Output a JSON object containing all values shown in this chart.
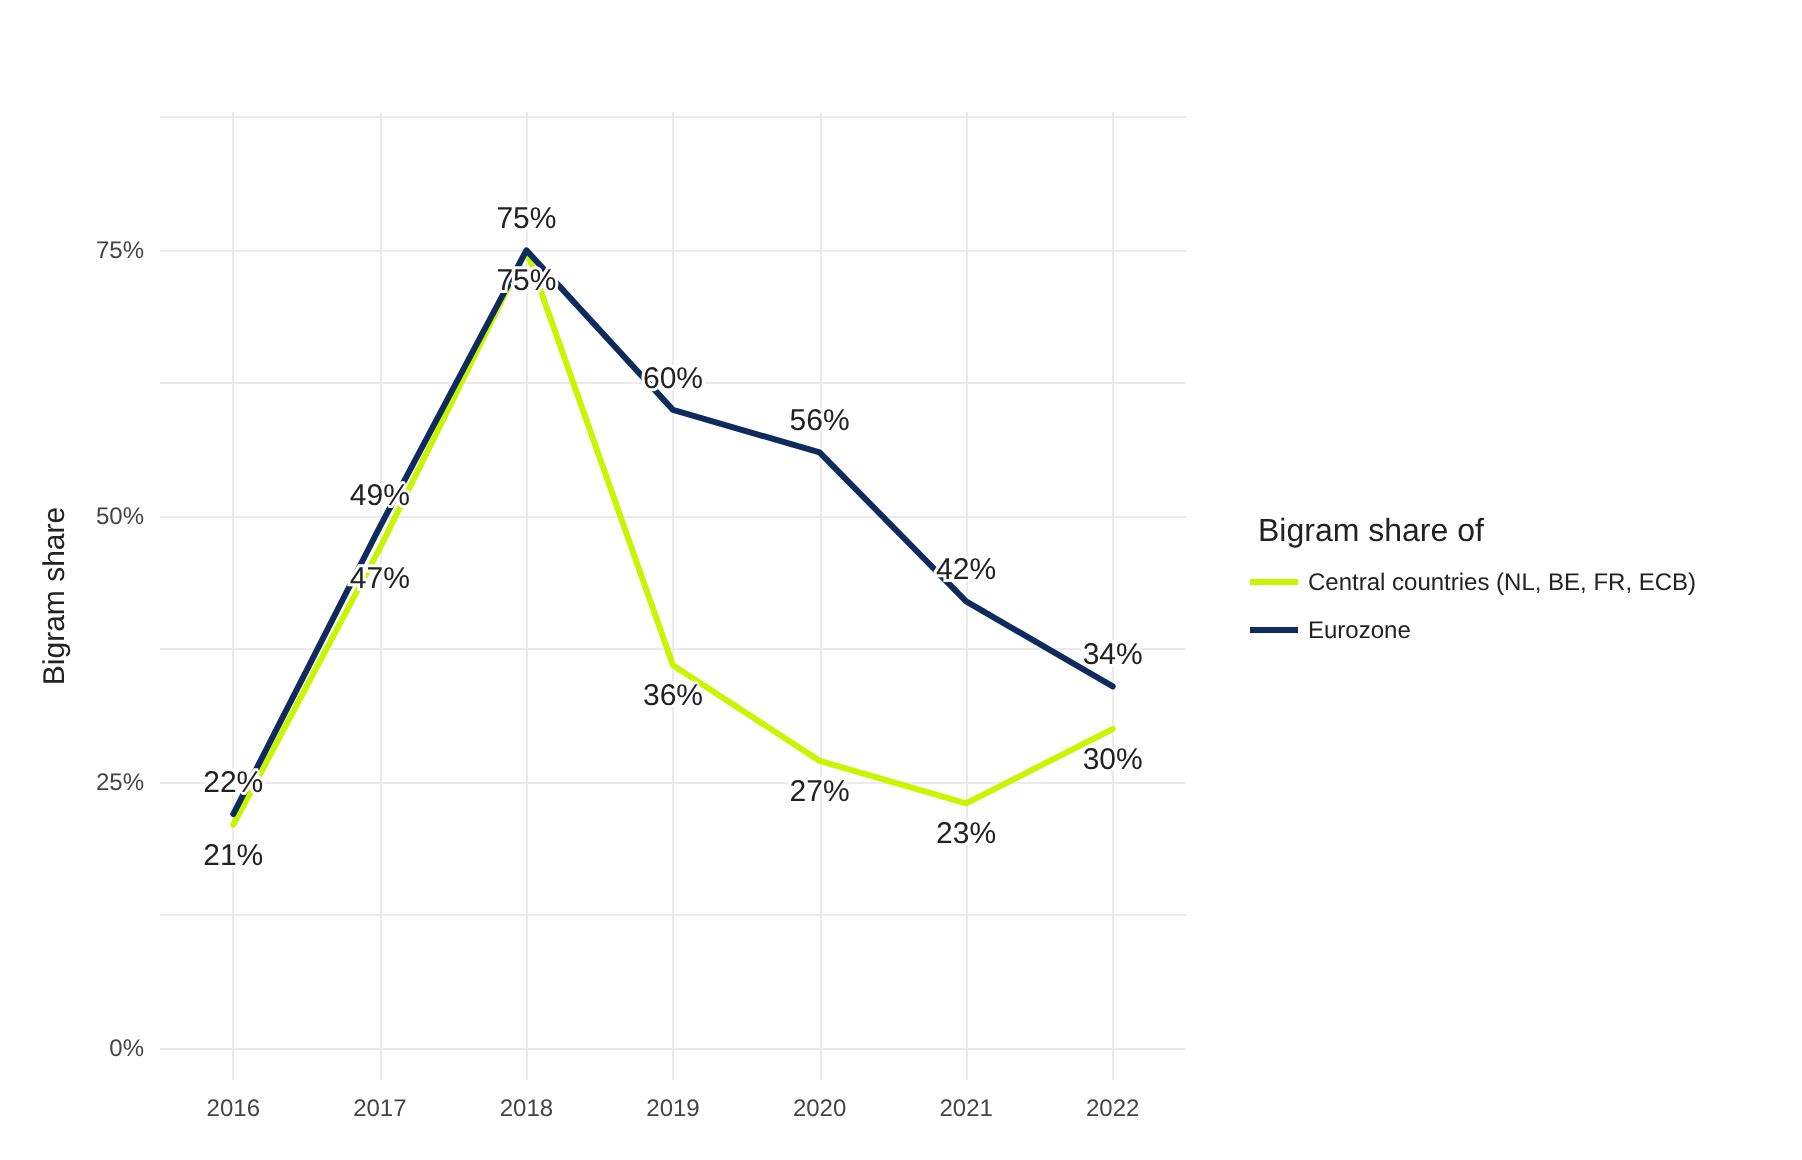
{
  "chart_data": {
    "type": "line",
    "ylabel": "Bigram share",
    "legend_title": "Bigram share of",
    "categories": [
      "2016",
      "2017",
      "2018",
      "2019",
      "2020",
      "2021",
      "2022"
    ],
    "series": [
      {
        "name": "Central countries (NL, BE, FR, ECB)",
        "color": "#c8f500",
        "values": [
          21,
          47,
          75,
          36,
          27,
          23,
          30
        ],
        "value_labels": [
          "21%",
          "47%",
          "75%",
          "36%",
          "27%",
          "23%",
          "30%"
        ]
      },
      {
        "name": "Eurozone",
        "color": "#0f2b5e",
        "values": [
          22,
          49,
          75,
          60,
          56,
          42,
          34
        ],
        "value_labels": [
          "22%",
          "49%",
          "75%",
          "60%",
          "56%",
          "42%",
          "34%"
        ]
      }
    ],
    "ylim": [
      -3,
      88
    ],
    "yticks": [
      {
        "value": 0,
        "label": "0%"
      },
      {
        "value": 12.5,
        "label": null
      },
      {
        "value": 25,
        "label": "25%"
      },
      {
        "value": 37.5,
        "label": null
      },
      {
        "value": 50,
        "label": "50%"
      },
      {
        "value": 62.5,
        "label": null
      },
      {
        "value": 75,
        "label": "75%"
      },
      {
        "value": 87.5,
        "label": null
      }
    ],
    "grid": true,
    "legend": "right",
    "marker": "none",
    "line_style": "solid"
  }
}
